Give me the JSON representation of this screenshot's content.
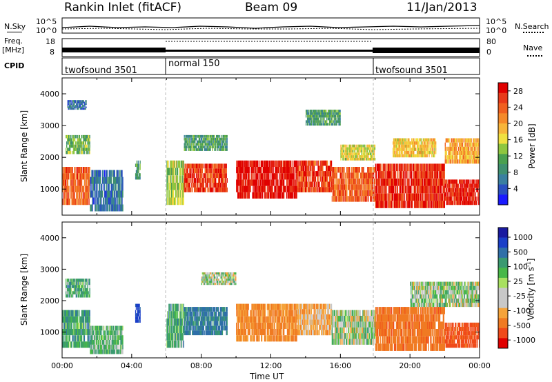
{
  "header": {
    "station": "Rankin Inlet (fitACF)",
    "beam": "Beam 09",
    "date": "11/Jan/2013"
  },
  "strip": {
    "nsky_label": "N.Sky",
    "nsearch_label": "N.Search",
    "noise_ticks": [
      "10^5",
      "10^0"
    ],
    "freq_label": "Freq.",
    "freq_unit": "[MHz]",
    "freq_ticks": [
      "18",
      "8"
    ],
    "nave_label": "Nave",
    "nave_ticks": [
      "80",
      "0"
    ],
    "cpid_label": "CPID",
    "cpid_segments": [
      {
        "name": "twofsound 3501",
        "start_hour": 0,
        "end_hour": 6
      },
      {
        "name": "normal 150",
        "start_hour": 6,
        "end_hour": 18
      },
      {
        "name": "twofsound 3501",
        "start_hour": 18,
        "end_hour": 24
      }
    ]
  },
  "colors": {
    "power_scale": [
      "#1a1aff",
      "#2a50c0",
      "#3a7fa0",
      "#3f9070",
      "#4aa050",
      "#8ec63f",
      "#f0e040",
      "#f7b53a",
      "#f58a2a",
      "#f06020",
      "#e83a1a",
      "#e00000"
    ],
    "velocity_scale": [
      "#e00000",
      "#f04a1a",
      "#f07a22",
      "#f5a33a",
      "#c8c8c8",
      "#c8c8c8",
      "#a8e060",
      "#48b848",
      "#3a9a70",
      "#2f6fa8",
      "#1a3fc8",
      "#1a1aa0"
    ]
  },
  "chart_data": [
    {
      "type": "heatmap",
      "title": "",
      "ylabel": "Slant Range [km]",
      "xlabel": "",
      "xlim": [
        "00:00",
        "00:00"
      ],
      "ylim": [
        180,
        4500
      ],
      "y_ticks": [
        1000,
        2000,
        3000,
        4000
      ],
      "colorbar": {
        "label": "Power [dB]",
        "ticks": [
          4,
          8,
          12,
          16,
          20,
          24,
          28
        ],
        "range": [
          0,
          30
        ]
      },
      "regions": [
        {
          "t0": 0.0,
          "t1": 1.6,
          "r0": 500,
          "r1": 1700,
          "v": 24
        },
        {
          "t0": 0.2,
          "t1": 1.6,
          "r0": 2100,
          "r1": 2700,
          "v": 12
        },
        {
          "t0": 0.3,
          "t1": 1.4,
          "r0": 3500,
          "r1": 3800,
          "v": 6
        },
        {
          "t0": 1.6,
          "t1": 3.5,
          "r0": 300,
          "r1": 1600,
          "v": 6
        },
        {
          "t0": 4.2,
          "t1": 4.5,
          "r0": 1300,
          "r1": 1900,
          "v": 10
        },
        {
          "t0": 6.0,
          "t1": 7.0,
          "r0": 500,
          "r1": 1900,
          "v": 14
        },
        {
          "t0": 7.0,
          "t1": 9.5,
          "r0": 900,
          "r1": 1800,
          "v": 26
        },
        {
          "t0": 7.0,
          "t1": 9.5,
          "r0": 2200,
          "r1": 2700,
          "v": 10
        },
        {
          "t0": 10.0,
          "t1": 13.5,
          "r0": 700,
          "r1": 1900,
          "v": 29
        },
        {
          "t0": 13.5,
          "t1": 15.5,
          "r0": 900,
          "r1": 1900,
          "v": 26
        },
        {
          "t0": 14.0,
          "t1": 16.0,
          "r0": 3000,
          "r1": 3500,
          "v": 10
        },
        {
          "t0": 15.5,
          "t1": 18.0,
          "r0": 600,
          "r1": 1700,
          "v": 24
        },
        {
          "t0": 16.0,
          "t1": 18.0,
          "r0": 1900,
          "r1": 2400,
          "v": 16
        },
        {
          "t0": 18.0,
          "t1": 22.0,
          "r0": 400,
          "r1": 1800,
          "v": 27
        },
        {
          "t0": 19.0,
          "t1": 21.5,
          "r0": 2000,
          "r1": 2600,
          "v": 18
        },
        {
          "t0": 22.0,
          "t1": 24.0,
          "r0": 500,
          "r1": 1300,
          "v": 28
        },
        {
          "t0": 22.0,
          "t1": 24.0,
          "r0": 1800,
          "r1": 2600,
          "v": 20
        }
      ]
    },
    {
      "type": "heatmap",
      "title": "",
      "ylabel": "Slant Range [km]",
      "xlabel": "Time UT",
      "xlim": [
        "00:00",
        "00:00"
      ],
      "x_ticks": [
        "00:00",
        "04:00",
        "08:00",
        "12:00",
        "16:00",
        "20:00",
        "00:00"
      ],
      "ylim": [
        180,
        4500
      ],
      "y_ticks": [
        1000,
        2000,
        3000,
        4000
      ],
      "colorbar": {
        "label": "Velocity [m s-1]",
        "ticks": [
          1000,
          500,
          100,
          25,
          -25,
          -100,
          -500,
          -1000
        ],
        "range": [
          -1000,
          1000
        ]
      },
      "regions": [
        {
          "t0": 0.0,
          "t1": 1.6,
          "r0": 500,
          "r1": 1700,
          "v": 150
        },
        {
          "t0": 0.2,
          "t1": 1.6,
          "r0": 2100,
          "r1": 2700,
          "v": 120
        },
        {
          "t0": 1.6,
          "t1": 3.5,
          "r0": 300,
          "r1": 1200,
          "v": 100
        },
        {
          "t0": 4.2,
          "t1": 4.5,
          "r0": 1300,
          "r1": 1900,
          "v": 600
        },
        {
          "t0": 6.0,
          "t1": 7.0,
          "r0": 500,
          "r1": 1900,
          "v": 120
        },
        {
          "t0": 7.0,
          "t1": 9.5,
          "r0": 900,
          "r1": 1800,
          "v": 300
        },
        {
          "t0": 8.0,
          "t1": 10.0,
          "r0": 2500,
          "r1": 2900,
          "v": 0
        },
        {
          "t0": 10.0,
          "t1": 13.5,
          "r0": 700,
          "r1": 1900,
          "v": -300
        },
        {
          "t0": 13.5,
          "t1": 15.5,
          "r0": 900,
          "r1": 1900,
          "v": -150
        },
        {
          "t0": 15.5,
          "t1": 18.0,
          "r0": 600,
          "r1": 1700,
          "v": 0
        },
        {
          "t0": 18.0,
          "t1": 22.0,
          "r0": 400,
          "r1": 1800,
          "v": -400
        },
        {
          "t0": 20.0,
          "t1": 24.0,
          "r0": 1800,
          "r1": 2600,
          "v": 0
        },
        {
          "t0": 22.0,
          "t1": 24.0,
          "r0": 500,
          "r1": 1300,
          "v": -600
        }
      ]
    }
  ]
}
